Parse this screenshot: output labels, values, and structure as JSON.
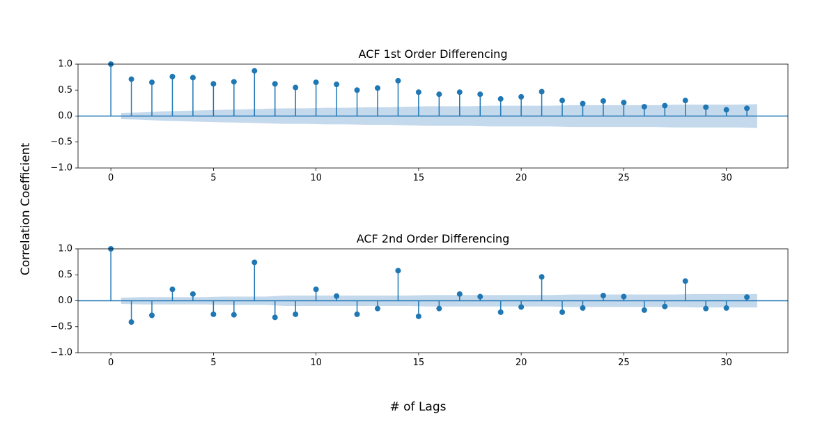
{
  "figure": {
    "xlabel": "# of Lags",
    "ylabel": "Correlation Coefficient"
  },
  "colors": {
    "stem": "#1f77b4",
    "band": "#c5d9ec",
    "axes": "#000000"
  },
  "chart_data": [
    {
      "type": "stem",
      "title": "ACF 1st Order Differencing",
      "xlim": [
        -1.6,
        33
      ],
      "ylim": [
        -1.0,
        1.0
      ],
      "xticks": [
        0,
        5,
        10,
        15,
        20,
        25,
        30
      ],
      "xtick_labels": [
        "0",
        "5",
        "10",
        "15",
        "20",
        "25",
        "30"
      ],
      "yticks": [
        1.0,
        0.5,
        0.0,
        -0.5,
        -1.0
      ],
      "ytick_labels": [
        "1.0",
        "0.5",
        "0.0",
        "−0.5",
        "−1.0"
      ],
      "lags": [
        0,
        1,
        2,
        3,
        4,
        5,
        6,
        7,
        8,
        9,
        10,
        11,
        12,
        13,
        14,
        15,
        16,
        17,
        18,
        19,
        20,
        21,
        22,
        23,
        24,
        25,
        26,
        27,
        28,
        29,
        30,
        31
      ],
      "values": [
        1.0,
        0.71,
        0.65,
        0.76,
        0.74,
        0.62,
        0.66,
        0.87,
        0.62,
        0.55,
        0.65,
        0.61,
        0.5,
        0.54,
        0.68,
        0.46,
        0.42,
        0.46,
        0.42,
        0.33,
        0.37,
        0.47,
        0.3,
        0.24,
        0.29,
        0.26,
        0.18,
        0.2,
        0.3,
        0.17,
        0.12,
        0.15
      ],
      "confidence_band": {
        "x": [
          0.5,
          1.5,
          2.5,
          3.5,
          4.5,
          5.5,
          6.5,
          7.5,
          8.5,
          9.5,
          10.5,
          11.5,
          12.5,
          13.5,
          14.5,
          15.5,
          16.5,
          17.5,
          18.5,
          19.5,
          20.5,
          21.5,
          22.5,
          23.5,
          24.5,
          25.5,
          26.5,
          27.5,
          28.5,
          29.5,
          30.5,
          31.5
        ],
        "upper": [
          0.06,
          0.07,
          0.09,
          0.1,
          0.11,
          0.12,
          0.13,
          0.14,
          0.15,
          0.15,
          0.16,
          0.16,
          0.17,
          0.17,
          0.18,
          0.19,
          0.19,
          0.19,
          0.2,
          0.2,
          0.2,
          0.2,
          0.21,
          0.21,
          0.21,
          0.21,
          0.21,
          0.22,
          0.22,
          0.22,
          0.22,
          0.23
        ]
      }
    },
    {
      "type": "stem",
      "title": "ACF 2nd Order Differencing",
      "xlim": [
        -1.6,
        33
      ],
      "ylim": [
        -1.0,
        1.0
      ],
      "xticks": [
        0,
        5,
        10,
        15,
        20,
        25,
        30
      ],
      "xtick_labels": [
        "0",
        "5",
        "10",
        "15",
        "20",
        "25",
        "30"
      ],
      "yticks": [
        1.0,
        0.5,
        0.0,
        -0.5,
        -1.0
      ],
      "ytick_labels": [
        "1.0",
        "0.5",
        "0.0",
        "−0.5",
        "−1.0"
      ],
      "lags": [
        0,
        1,
        2,
        3,
        4,
        5,
        6,
        7,
        8,
        9,
        10,
        11,
        12,
        13,
        14,
        15,
        16,
        17,
        18,
        19,
        20,
        21,
        22,
        23,
        24,
        25,
        26,
        27,
        28,
        29,
        30,
        31
      ],
      "values": [
        1.0,
        -0.41,
        -0.28,
        0.22,
        0.13,
        -0.26,
        -0.27,
        0.74,
        -0.32,
        -0.26,
        0.22,
        0.09,
        -0.26,
        -0.15,
        0.58,
        -0.3,
        -0.15,
        0.13,
        0.08,
        -0.22,
        -0.12,
        0.46,
        -0.22,
        -0.14,
        0.1,
        0.08,
        -0.18,
        -0.11,
        0.38,
        -0.15,
        -0.14,
        0.07
      ],
      "confidence_band": {
        "x": [
          0.5,
          1.5,
          2.5,
          3.5,
          4.5,
          5.5,
          6.5,
          7.5,
          8.5,
          9.5,
          10.5,
          11.5,
          12.5,
          13.5,
          14.5,
          15.5,
          16.5,
          17.5,
          18.5,
          19.5,
          20.5,
          21.5,
          22.5,
          23.5,
          24.5,
          25.5,
          26.5,
          27.5,
          28.5,
          29.5,
          30.5,
          31.5
        ],
        "upper": [
          0.06,
          0.07,
          0.07,
          0.07,
          0.07,
          0.08,
          0.08,
          0.08,
          0.1,
          0.1,
          0.1,
          0.1,
          0.1,
          0.1,
          0.1,
          0.11,
          0.11,
          0.11,
          0.11,
          0.11,
          0.11,
          0.11,
          0.12,
          0.12,
          0.12,
          0.12,
          0.12,
          0.12,
          0.13,
          0.13,
          0.13,
          0.13
        ]
      }
    }
  ]
}
